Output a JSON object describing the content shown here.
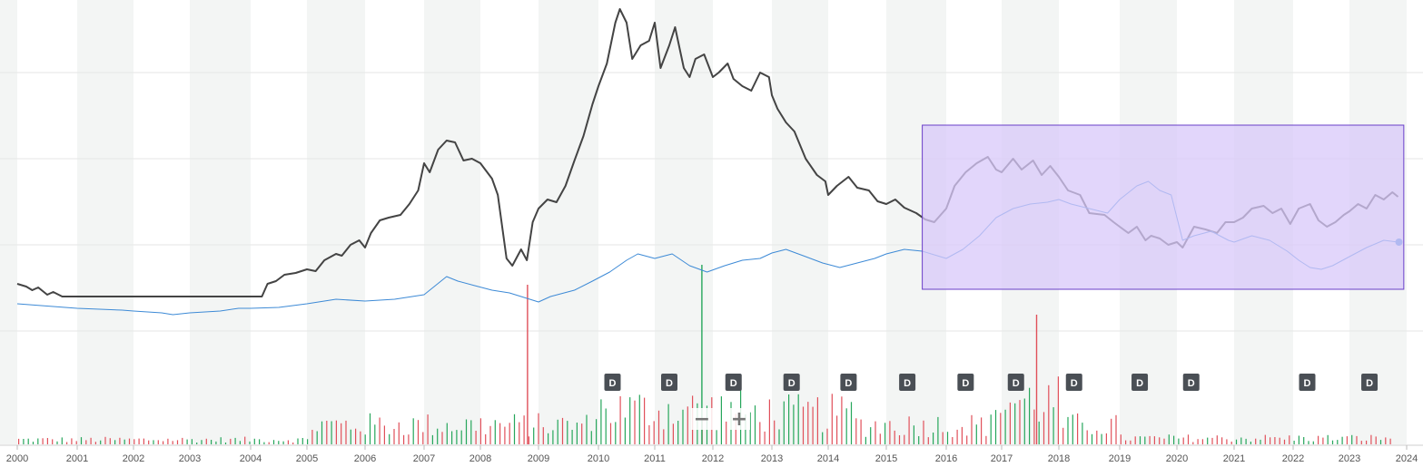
{
  "chart_data": {
    "type": "line",
    "x_axis": {
      "ticks": [
        "2000",
        "2001",
        "2002",
        "2003",
        "2004",
        "2005",
        "2006",
        "2007",
        "2008",
        "2009",
        "2010",
        "2011",
        "2012",
        "2013",
        "2014",
        "2015",
        "2016",
        "2017",
        "2018",
        "2019",
        "2020",
        "2021",
        "2022",
        "2023",
        "2024"
      ],
      "range": [
        2000,
        2024
      ]
    },
    "grid": "alternating vertical year bands",
    "legend": "none",
    "series": [
      {
        "key": "price",
        "color": "#444444",
        "points": [
          [
            2000.0,
            92
          ],
          [
            2000.15,
            89
          ],
          [
            2000.25,
            85
          ],
          [
            2000.35,
            88
          ],
          [
            2000.5,
            80
          ],
          [
            2000.6,
            83
          ],
          [
            2000.75,
            78
          ],
          [
            2001.0,
            78
          ],
          [
            2002.0,
            78
          ],
          [
            2003.0,
            78
          ],
          [
            2004.2,
            78
          ],
          [
            2004.3,
            92
          ],
          [
            2004.45,
            95
          ],
          [
            2004.6,
            102
          ],
          [
            2004.8,
            104
          ],
          [
            2005.0,
            108
          ],
          [
            2005.15,
            106
          ],
          [
            2005.3,
            118
          ],
          [
            2005.5,
            125
          ],
          [
            2005.6,
            123
          ],
          [
            2005.75,
            135
          ],
          [
            2005.9,
            140
          ],
          [
            2006.0,
            132
          ],
          [
            2006.1,
            148
          ],
          [
            2006.25,
            162
          ],
          [
            2006.4,
            165
          ],
          [
            2006.6,
            168
          ],
          [
            2006.75,
            180
          ],
          [
            2006.9,
            195
          ],
          [
            2007.0,
            225
          ],
          [
            2007.1,
            215
          ],
          [
            2007.25,
            240
          ],
          [
            2007.4,
            250
          ],
          [
            2007.55,
            248
          ],
          [
            2007.7,
            228
          ],
          [
            2007.85,
            230
          ],
          [
            2008.0,
            225
          ],
          [
            2008.2,
            208
          ],
          [
            2008.3,
            190
          ],
          [
            2008.45,
            120
          ],
          [
            2008.55,
            112
          ],
          [
            2008.7,
            130
          ],
          [
            2008.8,
            118
          ],
          [
            2008.9,
            160
          ],
          [
            2009.0,
            175
          ],
          [
            2009.15,
            185
          ],
          [
            2009.3,
            182
          ],
          [
            2009.45,
            200
          ],
          [
            2009.6,
            228
          ],
          [
            2009.75,
            255
          ],
          [
            2009.9,
            290
          ],
          [
            2010.0,
            310
          ],
          [
            2010.15,
            335
          ],
          [
            2010.3,
            380
          ],
          [
            2010.38,
            395
          ],
          [
            2010.5,
            380
          ],
          [
            2010.6,
            340
          ],
          [
            2010.75,
            355
          ],
          [
            2010.9,
            360
          ],
          [
            2011.0,
            380
          ],
          [
            2011.1,
            330
          ],
          [
            2011.25,
            355
          ],
          [
            2011.35,
            375
          ],
          [
            2011.5,
            330
          ],
          [
            2011.6,
            320
          ],
          [
            2011.7,
            340
          ],
          [
            2011.85,
            345
          ],
          [
            2012.0,
            320
          ],
          [
            2012.1,
            325
          ],
          [
            2012.25,
            335
          ],
          [
            2012.35,
            318
          ],
          [
            2012.5,
            310
          ],
          [
            2012.65,
            305
          ],
          [
            2012.8,
            325
          ],
          [
            2012.95,
            320
          ],
          [
            2013.0,
            300
          ],
          [
            2013.1,
            285
          ],
          [
            2013.25,
            270
          ],
          [
            2013.4,
            260
          ],
          [
            2013.6,
            230
          ],
          [
            2013.8,
            212
          ],
          [
            2013.95,
            205
          ],
          [
            2014.0,
            190
          ],
          [
            2014.15,
            200
          ],
          [
            2014.35,
            210
          ],
          [
            2014.5,
            198
          ],
          [
            2014.7,
            195
          ],
          [
            2014.85,
            183
          ],
          [
            2015.0,
            180
          ],
          [
            2015.15,
            185
          ],
          [
            2015.3,
            176
          ],
          [
            2015.5,
            170
          ],
          [
            2015.65,
            163
          ],
          [
            2015.8,
            160
          ],
          [
            2016.0,
            175
          ],
          [
            2016.15,
            200
          ],
          [
            2016.35,
            215
          ],
          [
            2016.55,
            225
          ],
          [
            2016.75,
            232
          ],
          [
            2016.9,
            218
          ],
          [
            2017.0,
            215
          ],
          [
            2017.2,
            230
          ],
          [
            2017.35,
            218
          ],
          [
            2017.55,
            228
          ],
          [
            2017.7,
            212
          ],
          [
            2017.85,
            222
          ],
          [
            2018.0,
            210
          ],
          [
            2018.15,
            195
          ],
          [
            2018.35,
            190
          ],
          [
            2018.5,
            170
          ],
          [
            2018.75,
            168
          ],
          [
            2018.9,
            160
          ],
          [
            2019.0,
            155
          ],
          [
            2019.15,
            148
          ],
          [
            2019.3,
            155
          ],
          [
            2019.45,
            140
          ],
          [
            2019.55,
            145
          ],
          [
            2019.7,
            142
          ],
          [
            2019.85,
            135
          ],
          [
            2020.0,
            138
          ],
          [
            2020.1,
            132
          ],
          [
            2020.3,
            155
          ],
          [
            2020.5,
            152
          ],
          [
            2020.7,
            148
          ],
          [
            2020.85,
            160
          ],
          [
            2021.0,
            160
          ],
          [
            2021.15,
            165
          ],
          [
            2021.3,
            175
          ],
          [
            2021.5,
            178
          ],
          [
            2021.65,
            170
          ],
          [
            2021.8,
            175
          ],
          [
            2021.95,
            158
          ],
          [
            2022.1,
            175
          ],
          [
            2022.3,
            180
          ],
          [
            2022.45,
            162
          ],
          [
            2022.6,
            155
          ],
          [
            2022.75,
            160
          ],
          [
            2022.9,
            168
          ],
          [
            2023.0,
            172
          ],
          [
            2023.15,
            180
          ],
          [
            2023.3,
            175
          ],
          [
            2023.45,
            190
          ],
          [
            2023.6,
            185
          ],
          [
            2023.75,
            193
          ],
          [
            2023.85,
            188
          ]
        ]
      },
      {
        "key": "index",
        "color": "#3d8ad6",
        "points": [
          [
            2000.0,
            70
          ],
          [
            2000.4,
            68
          ],
          [
            2000.8,
            66
          ],
          [
            2001.0,
            65
          ],
          [
            2001.4,
            64
          ],
          [
            2001.8,
            63
          ],
          [
            2002.0,
            62
          ],
          [
            2002.5,
            60
          ],
          [
            2002.7,
            58
          ],
          [
            2003.0,
            60
          ],
          [
            2003.5,
            62
          ],
          [
            2003.8,
            65
          ],
          [
            2004.0,
            65
          ],
          [
            2004.5,
            66
          ],
          [
            2005.0,
            70
          ],
          [
            2005.5,
            75
          ],
          [
            2006.0,
            73
          ],
          [
            2006.5,
            75
          ],
          [
            2007.0,
            80
          ],
          [
            2007.2,
            90
          ],
          [
            2007.4,
            100
          ],
          [
            2007.6,
            95
          ],
          [
            2007.9,
            90
          ],
          [
            2008.2,
            85
          ],
          [
            2008.5,
            82
          ],
          [
            2008.8,
            76
          ],
          [
            2009.0,
            72
          ],
          [
            2009.2,
            78
          ],
          [
            2009.6,
            85
          ],
          [
            2009.9,
            95
          ],
          [
            2010.2,
            105
          ],
          [
            2010.5,
            118
          ],
          [
            2010.7,
            125
          ],
          [
            2011.0,
            120
          ],
          [
            2011.3,
            125
          ],
          [
            2011.6,
            112
          ],
          [
            2011.9,
            105
          ],
          [
            2012.2,
            112
          ],
          [
            2012.5,
            118
          ],
          [
            2012.8,
            120
          ],
          [
            2013.0,
            126
          ],
          [
            2013.25,
            130
          ],
          [
            2013.6,
            122
          ],
          [
            2013.9,
            115
          ],
          [
            2014.2,
            110
          ],
          [
            2014.5,
            115
          ],
          [
            2014.8,
            120
          ],
          [
            2015.0,
            125
          ],
          [
            2015.3,
            130
          ],
          [
            2015.6,
            128
          ],
          [
            2016.0,
            120
          ],
          [
            2016.3,
            130
          ],
          [
            2016.6,
            145
          ],
          [
            2016.9,
            165
          ],
          [
            2017.2,
            175
          ],
          [
            2017.5,
            180
          ],
          [
            2017.8,
            182
          ],
          [
            2018.0,
            185
          ],
          [
            2018.2,
            180
          ],
          [
            2018.5,
            175
          ],
          [
            2018.8,
            170
          ],
          [
            2019.0,
            185
          ],
          [
            2019.3,
            200
          ],
          [
            2019.5,
            205
          ],
          [
            2019.7,
            195
          ],
          [
            2019.9,
            190
          ],
          [
            2020.1,
            140
          ],
          [
            2020.3,
            145
          ],
          [
            2020.6,
            150
          ],
          [
            2020.9,
            140
          ],
          [
            2021.0,
            138
          ],
          [
            2021.3,
            145
          ],
          [
            2021.6,
            140
          ],
          [
            2021.9,
            128
          ],
          [
            2022.1,
            118
          ],
          [
            2022.3,
            110
          ],
          [
            2022.5,
            108
          ],
          [
            2022.7,
            112
          ],
          [
            2023.0,
            122
          ],
          [
            2023.3,
            132
          ],
          [
            2023.6,
            140
          ],
          [
            2023.85,
            138
          ]
        ]
      }
    ],
    "volume": {
      "color_up": "#26a65b",
      "color_down": "#e0505a",
      "spikes": [
        [
          2008.8,
          "down",
          160
        ],
        [
          2011.8,
          "up",
          180
        ],
        [
          2017.6,
          "down",
          130
        ]
      ]
    },
    "dividend_markers": [
      {
        "x": 2010.25,
        "label": "D"
      },
      {
        "x": 2011.25,
        "label": "D"
      },
      {
        "x": 2012.35,
        "label": "D"
      },
      {
        "x": 2013.35,
        "label": "D"
      },
      {
        "x": 2014.35,
        "label": "D"
      },
      {
        "x": 2015.35,
        "label": "D"
      },
      {
        "x": 2016.35,
        "label": "D"
      },
      {
        "x": 2017.25,
        "label": "D"
      },
      {
        "x": 2018.25,
        "label": "D"
      },
      {
        "x": 2019.35,
        "label": "D"
      },
      {
        "x": 2020.25,
        "label": "D"
      },
      {
        "x": 2022.25,
        "label": "D"
      },
      {
        "x": 2023.35,
        "label": "D"
      }
    ],
    "selection": {
      "x_range": [
        2015.6,
        2023.95
      ],
      "fill": "#d8c8fa",
      "stroke": "#6a3fc9"
    },
    "zoom_controls": {
      "minus": "−",
      "plus": "+"
    }
  }
}
